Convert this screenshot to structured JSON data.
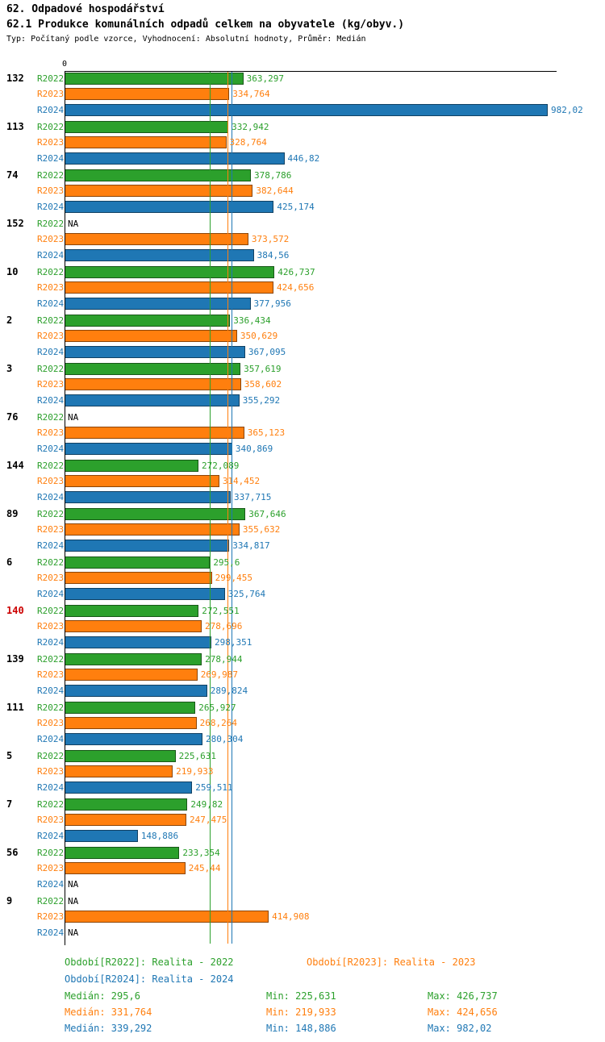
{
  "title": "62. Odpadové hospodářství",
  "subtitle": "62.1 Produkce komunálních odpadů celkem na obyvatele (kg/obyv.)",
  "meta": "Typ: Počítaný podle vzorce, Vyhodnocení: Absolutní hodnoty, Průměr: Medián",
  "colors": {
    "r2022": "#2ca02c",
    "r2023": "#ff7f0e",
    "r2024": "#1f77b4",
    "highlight": "#cc0000",
    "na_text": "#000000"
  },
  "chart_data": {
    "type": "bar",
    "orientation": "horizontal",
    "title": "62.1 Produkce komunálních odpadů celkem na obyvatele (kg/obyv.)",
    "xlim": [
      0,
      1000
    ],
    "zero_label": "0",
    "na_label": "NA",
    "series": [
      "R2022",
      "R2023",
      "R2024"
    ],
    "series_colors": [
      "#2ca02c",
      "#ff7f0e",
      "#1f77b4"
    ],
    "median_lines": [
      295.6,
      331.764,
      339.292
    ],
    "groups": [
      {
        "id": "132",
        "highlight": false,
        "values": [
          363.297,
          334.764,
          982.02
        ],
        "labels": [
          "363,297",
          "334,764",
          "982,02"
        ]
      },
      {
        "id": "113",
        "highlight": false,
        "values": [
          332.942,
          328.764,
          446.82
        ],
        "labels": [
          "332,942",
          "328,764",
          "446,82"
        ]
      },
      {
        "id": "74",
        "highlight": false,
        "values": [
          378.786,
          382.644,
          425.174
        ],
        "labels": [
          "378,786",
          "382,644",
          "425,174"
        ]
      },
      {
        "id": "152",
        "highlight": false,
        "values": [
          null,
          373.572,
          384.56
        ],
        "labels": [
          "NA",
          "373,572",
          "384,56"
        ]
      },
      {
        "id": "10",
        "highlight": false,
        "values": [
          426.737,
          424.656,
          377.956
        ],
        "labels": [
          "426,737",
          "424,656",
          "377,956"
        ]
      },
      {
        "id": "2",
        "highlight": false,
        "values": [
          336.434,
          350.629,
          367.095
        ],
        "labels": [
          "336,434",
          "350,629",
          "367,095"
        ]
      },
      {
        "id": "3",
        "highlight": false,
        "values": [
          357.619,
          358.602,
          355.292
        ],
        "labels": [
          "357,619",
          "358,602",
          "355,292"
        ]
      },
      {
        "id": "76",
        "highlight": false,
        "values": [
          null,
          365.123,
          340.869
        ],
        "labels": [
          "NA",
          "365,123",
          "340,869"
        ]
      },
      {
        "id": "144",
        "highlight": false,
        "values": [
          272.089,
          314.452,
          337.715
        ],
        "labels": [
          "272,089",
          "314,452",
          "337,715"
        ]
      },
      {
        "id": "89",
        "highlight": false,
        "values": [
          367.646,
          355.632,
          334.817
        ],
        "labels": [
          "367,646",
          "355,632",
          "334,817"
        ]
      },
      {
        "id": "6",
        "highlight": false,
        "values": [
          295.6,
          299.455,
          325.764
        ],
        "labels": [
          "295,6",
          "299,455",
          "325,764"
        ]
      },
      {
        "id": "140",
        "highlight": true,
        "values": [
          272.551,
          278.696,
          298.351
        ],
        "labels": [
          "272,551",
          "278,696",
          "298,351"
        ]
      },
      {
        "id": "139",
        "highlight": false,
        "values": [
          278.944,
          269.987,
          289.824
        ],
        "labels": [
          "278,944",
          "269,987",
          "289,824"
        ]
      },
      {
        "id": "111",
        "highlight": false,
        "values": [
          265.927,
          268.264,
          280.304
        ],
        "labels": [
          "265,927",
          "268,264",
          "280,304"
        ]
      },
      {
        "id": "5",
        "highlight": false,
        "values": [
          225.631,
          219.933,
          259.511
        ],
        "labels": [
          "225,631",
          "219,933",
          "259,511"
        ]
      },
      {
        "id": "7",
        "highlight": false,
        "values": [
          249.82,
          247.475,
          148.886
        ],
        "labels": [
          "249,82",
          "247,475",
          "148,886"
        ]
      },
      {
        "id": "56",
        "highlight": false,
        "values": [
          233.354,
          245.44,
          null
        ],
        "labels": [
          "233,354",
          "245,44",
          "NA"
        ]
      },
      {
        "id": "9",
        "highlight": false,
        "values": [
          null,
          414.908,
          null
        ],
        "labels": [
          "NA",
          "414,908",
          "NA"
        ]
      }
    ]
  },
  "legend": [
    {
      "label": "Období[R2022]: Realita - 2022"
    },
    {
      "label": "Období[R2023]: Realita - 2023"
    },
    {
      "label": "Období[R2024]: Realita - 2024"
    }
  ],
  "stats": [
    {
      "median": "Medián: 295,6",
      "min": "Min: 225,631",
      "max": "Max: 426,737"
    },
    {
      "median": "Medián: 331,764",
      "min": "Min: 219,933",
      "max": "Max: 424,656"
    },
    {
      "median": "Medián: 339,292",
      "min": "Min: 148,886",
      "max": "Max: 982,02"
    }
  ]
}
